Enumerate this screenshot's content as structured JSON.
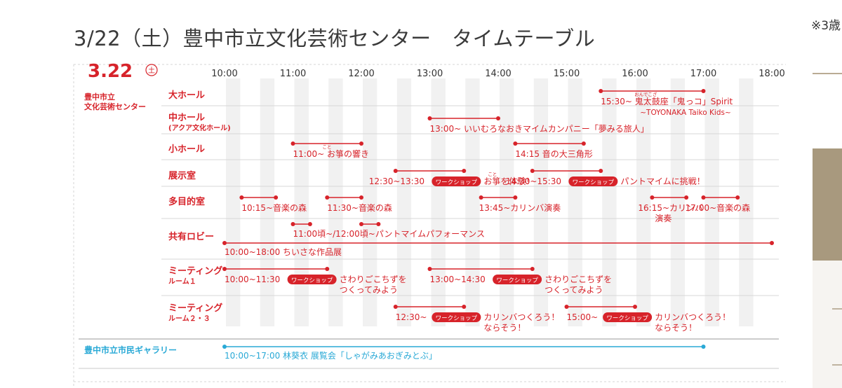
{
  "page_title": "3/22（土）豊中市立文化芸術センター　タイムテーブル",
  "side_note": "※3歳",
  "date_label": "3.22",
  "weekday": "土",
  "hours": [
    "10:00",
    "11:00",
    "12:00",
    "13:00",
    "14:00",
    "15:00",
    "16:00",
    "17:00",
    "18:00"
  ],
  "venue_group": [
    "豊中市立",
    "文化芸術センター"
  ],
  "rooms": [
    {
      "lines": [
        "大ホール"
      ]
    },
    {
      "lines": [
        "中ホール",
        "(アクア文化ホール)"
      ]
    },
    {
      "lines": [
        "小ホール"
      ]
    },
    {
      "lines": [
        "展示室"
      ]
    },
    {
      "lines": [
        "多目的室"
      ]
    },
    {
      "lines": [
        "共有ロビー"
      ]
    },
    {
      "lines": [
        "ミーティング",
        "ルーム１"
      ]
    },
    {
      "lines": [
        "ミーティング",
        "ルーム２・３"
      ]
    }
  ],
  "gallery_label": "豊中市立市民ギャラリー",
  "workshop_badge": "ワークショップ",
  "colors": {
    "accent_red": "#d7232a",
    "gallery_blue": "#29a9d6",
    "stripe": "#f1f1f1"
  },
  "events": [
    {
      "row": 0,
      "start": "15:30",
      "end": "17:00",
      "lines": [
        "15:30~ 鬼太鼓座「鬼っコ」Spirit",
        "~TOYONAKA Taiko Kids~"
      ],
      "ruby": "おんでこざ"
    },
    {
      "row": 1,
      "start": "13:00",
      "end": "14:00",
      "lines": [
        "13:00~ いいむろなおきマイムカンパニー「夢みる旅人」"
      ]
    },
    {
      "row": 2,
      "start": "11:00",
      "end": "12:00",
      "lines": [
        "11:00~ お箏の響き"
      ],
      "ruby": "こと"
    },
    {
      "row": 2,
      "start": "14:15",
      "end": "15:15",
      "lines": [
        "14:15 音の大三角形"
      ]
    },
    {
      "row": 3,
      "start": "12:30",
      "end": "13:30",
      "lines": [
        "12:30~13:30",
        "お箏を体験！"
      ],
      "ruby": "こと",
      "workshop": true
    },
    {
      "row": 3,
      "start": "14:30",
      "end": "15:30",
      "lines": [
        "14:30~15:30",
        "パントマイムに挑戦！"
      ],
      "workshop": true
    },
    {
      "row": 4,
      "start": "10:15",
      "end": "10:45",
      "lines": [
        "10:15~音楽の森"
      ]
    },
    {
      "row": 4,
      "start": "11:30",
      "end": "12:00",
      "lines": [
        "11:30~音楽の森"
      ]
    },
    {
      "row": 4,
      "start": "13:45",
      "end": "14:15",
      "lines": [
        "13:45~カリンバ演奏"
      ]
    },
    {
      "row": 4,
      "start": "16:15",
      "end": "16:45",
      "lines": [
        "16:15~カリンバ",
        "演奏"
      ]
    },
    {
      "row": 4,
      "start": "17:00",
      "end": "17:30",
      "lines": [
        "17:00~音楽の森"
      ]
    },
    {
      "row": 5,
      "start": "11:00",
      "end": "11:15",
      "lines": [
        "11:00頃~/12:00頃~パントマイムパフォーマンス"
      ]
    },
    {
      "row": 5,
      "start": "12:00",
      "end": "12:15",
      "lines": [
        ""
      ]
    },
    {
      "row": 5,
      "start": "10:00",
      "end": "18:00",
      "lines": [
        "10:00~18:00 ちいさな作品展"
      ]
    },
    {
      "row": 6,
      "start": "10:00",
      "end": "11:30",
      "lines": [
        "10:00~11:30",
        "さわりごこちずを",
        "つくってみよう"
      ],
      "workshop": true
    },
    {
      "row": 6,
      "start": "13:00",
      "end": "14:30",
      "lines": [
        "13:00~14:30",
        "さわりごこちずを",
        "つくってみよう"
      ],
      "workshop": true
    },
    {
      "row": 7,
      "start": "12:30",
      "end": "13:30",
      "lines": [
        "12:30~",
        "カリンバつくろう！",
        "ならそう！"
      ],
      "workshop": true
    },
    {
      "row": 7,
      "start": "15:00",
      "end": "16:00",
      "lines": [
        "15:00~",
        "カリンバつくろう！",
        "ならそう！"
      ],
      "workshop": true
    }
  ],
  "gallery_event": {
    "start": "10:00",
    "end": "17:00",
    "text": "10:00~17:00 林葵衣 展覧会「しゃがみあおぎみとぶ」"
  }
}
